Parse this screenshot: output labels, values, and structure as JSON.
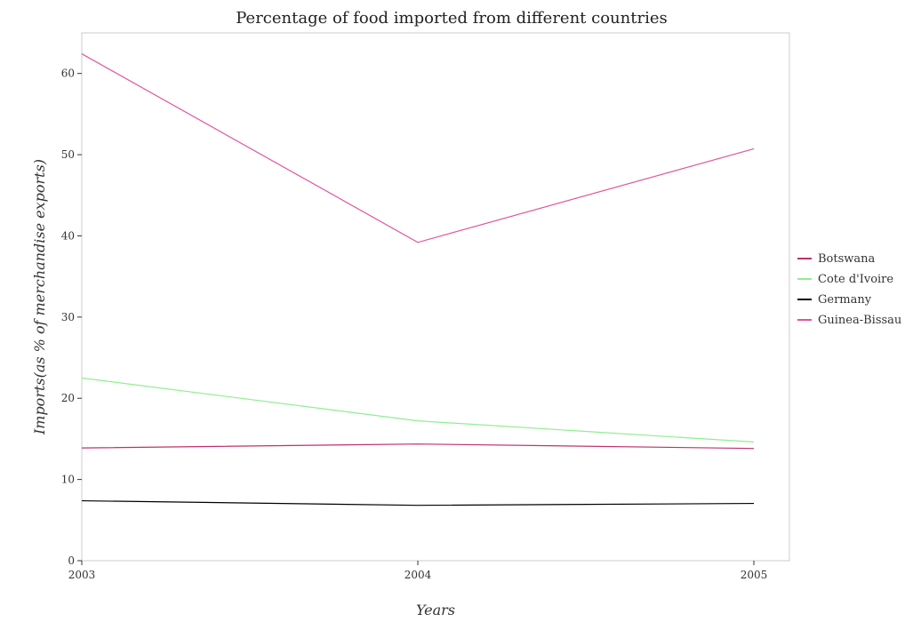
{
  "chart_data": {
    "type": "line",
    "title": "Percentage of food imported from different countries",
    "xlabel": "Years",
    "ylabel": "Imports(as % of merchandise exports)",
    "x": [
      "2003",
      "2004",
      "2005"
    ],
    "ylim": [
      0,
      65
    ],
    "yticks": [
      0,
      10,
      20,
      30,
      40,
      50,
      60
    ],
    "grid": false,
    "legend_position": "right",
    "series": [
      {
        "name": "Botswana",
        "color": "#c0306c",
        "values": [
          13.88,
          14.37,
          13.82
        ]
      },
      {
        "name": "Cote d'Ivoire",
        "color": "#90ee90",
        "values": [
          22.5,
          17.22,
          14.62
        ]
      },
      {
        "name": "Germany",
        "color": "#000000",
        "values": [
          7.38,
          6.82,
          7.05
        ]
      },
      {
        "name": "Guinea-Bissau",
        "color": "#e0559e",
        "values": [
          62.42,
          39.2,
          50.73
        ]
      }
    ]
  }
}
